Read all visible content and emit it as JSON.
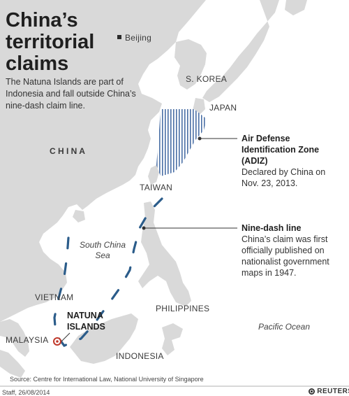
{
  "title": "China’s territorial claims",
  "description": "The Natuna Islands are part of Indonesia and fall outside China’s nine-dash claim line.",
  "places": {
    "beijing": "Beijing",
    "china": "C H I N A",
    "south_korea": "S. KOREA",
    "japan": "JAPAN",
    "taiwan": "TAIWAN",
    "vietnam": "VIETNAM",
    "philippines": "PHILIPPINES",
    "malaysia": "MALAYSIA",
    "indonesia": "INDONESIA"
  },
  "seas": {
    "south_china_sea": "South China Sea",
    "pacific_ocean": "Pacific Ocean"
  },
  "natuna": {
    "label_line1": "NATUNA",
    "label_line2": "ISLANDS"
  },
  "callouts": {
    "adiz": {
      "heading": "Air Defense Identification Zone (ADIZ)",
      "body": "Declared by China on Nov. 23, 2013."
    },
    "nine_dash": {
      "heading": "Nine-dash line",
      "body": "China’s claim was first officially published on nationalist government maps in 1947."
    }
  },
  "footer": {
    "source": "Source: Centre for International Law, National University of Singapore",
    "credit": "Staff, 26/08/2014",
    "logo": "REUTERS"
  },
  "colors": {
    "land": "#d9d9d9",
    "sea": "#ffffff",
    "coast": "#ffffff",
    "claim_line": "#2b5c8a",
    "adiz_hatch": "#4a6fa5",
    "natuna_marker": "#c0392b"
  }
}
